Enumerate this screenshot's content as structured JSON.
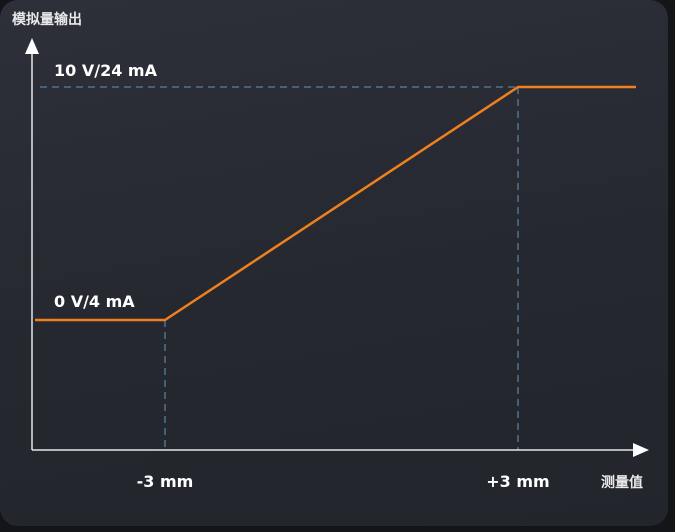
{
  "chart_data": {
    "type": "line",
    "ylabel": "模拟量输出",
    "xlabel": "测量值",
    "x_ticks": [
      "-3 mm",
      "+3 mm"
    ],
    "y_ticks": [
      "0 V/4 mA",
      "10 V/24 mA"
    ],
    "series": [
      {
        "points": [
          {
            "x": "below -3 mm",
            "y": "0 V/4 mA"
          },
          {
            "x": "-3 mm",
            "y": "0 V/4 mA"
          },
          {
            "x": "+3 mm",
            "y": "10 V/24 mA"
          },
          {
            "x": "above +3 mm",
            "y": "10 V/24 mA"
          }
        ]
      }
    ],
    "colors": {
      "line": "#f07f1e",
      "guides": "#4f7390",
      "axes": "#e6e6e6",
      "background": "#272a32"
    }
  }
}
